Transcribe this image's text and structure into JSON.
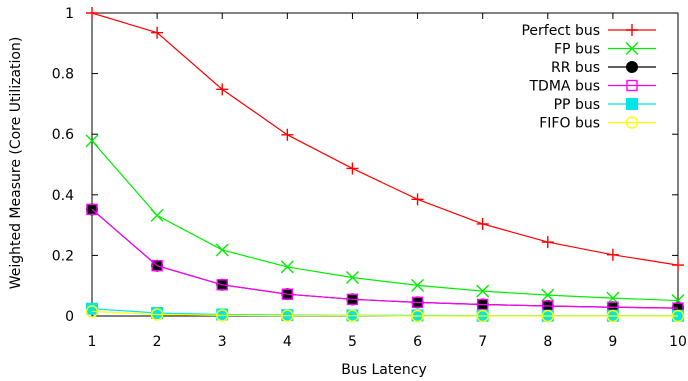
{
  "chart_data": {
    "type": "line",
    "xlabel": "Bus Latency",
    "ylabel": "Weighted Measure (Core Utilization)",
    "x": [
      1,
      2,
      3,
      4,
      5,
      6,
      7,
      8,
      9,
      10
    ],
    "xlim": [
      1,
      10
    ],
    "ylim": [
      0,
      1
    ],
    "x_ticks": [
      "1",
      "2",
      "3",
      "4",
      "5",
      "6",
      "7",
      "8",
      "9",
      "10"
    ],
    "y_ticks": [
      "0",
      "0.2",
      "0.4",
      "0.6",
      "0.8",
      "1"
    ],
    "grid": false,
    "legend_position": "top-right",
    "series": [
      {
        "name": "Perfect bus",
        "color": "#ff0000",
        "marker": "plus",
        "values": [
          1.0,
          0.935,
          0.748,
          0.598,
          0.487,
          0.385,
          0.304,
          0.244,
          0.202,
          0.168
        ]
      },
      {
        "name": "FP bus",
        "color": "#00ee00",
        "marker": "cross",
        "values": [
          0.578,
          0.332,
          0.218,
          0.162,
          0.127,
          0.101,
          0.082,
          0.069,
          0.059,
          0.051
        ]
      },
      {
        "name": "RR bus",
        "color": "#000000",
        "marker": "filled-circle",
        "values": [
          0.352,
          0.166,
          0.103,
          0.072,
          0.055,
          0.045,
          0.038,
          0.033,
          0.029,
          0.026
        ]
      },
      {
        "name": "TDMA bus",
        "color": "#ff00ff",
        "marker": "open-square",
        "values": [
          0.352,
          0.166,
          0.103,
          0.072,
          0.055,
          0.045,
          0.038,
          0.033,
          0.029,
          0.026
        ]
      },
      {
        "name": "PP bus",
        "color": "#00e5e5",
        "marker": "filled-square",
        "values": [
          0.024,
          0.01,
          0.005,
          0.003,
          0.002,
          0.002,
          0.001,
          0.001,
          0.001,
          0.001
        ]
      },
      {
        "name": "FIFO bus",
        "color": "#ffff00",
        "marker": "open-circle",
        "values": [
          0.015,
          0.005,
          0.002,
          0.001,
          0.001,
          0.0,
          0.0,
          0.0,
          0.0,
          0.0
        ]
      }
    ]
  }
}
